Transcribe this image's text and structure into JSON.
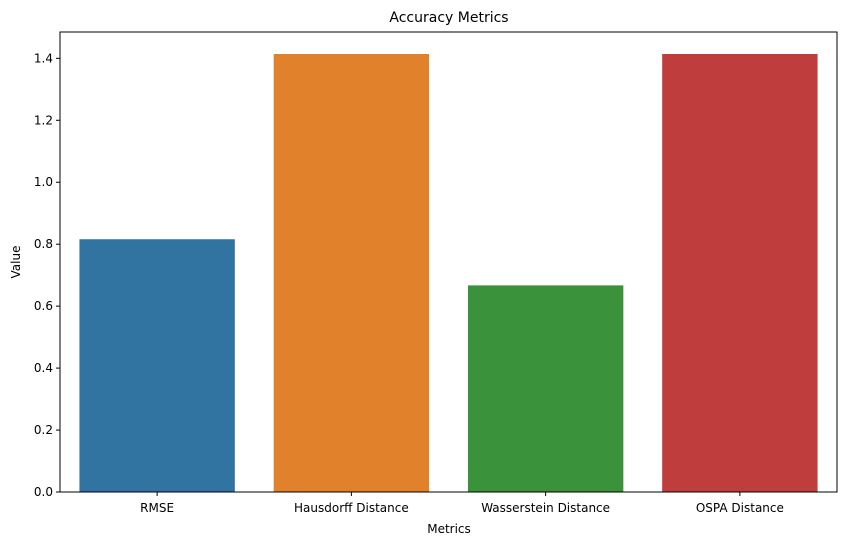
{
  "chart_data": {
    "type": "bar",
    "title": "Accuracy Metrics",
    "xlabel": "Metrics",
    "ylabel": "Value",
    "categories": [
      "RMSE",
      "Hausdorff Distance",
      "Wasserstein Distance",
      "OSPA Distance"
    ],
    "values": [
      0.816,
      1.414,
      0.667,
      1.414
    ],
    "colors": [
      "#3274a1",
      "#e1812c",
      "#3a923a",
      "#c03d3e"
    ],
    "ylim": [
      0,
      1.485
    ],
    "yticks": [
      0.0,
      0.2,
      0.4,
      0.6,
      0.8,
      1.0,
      1.2,
      1.4
    ],
    "ytick_labels": [
      "0.0",
      "0.2",
      "0.4",
      "0.6",
      "0.8",
      "1.0",
      "1.2",
      "1.4"
    ],
    "grid": false,
    "legend": "none"
  }
}
